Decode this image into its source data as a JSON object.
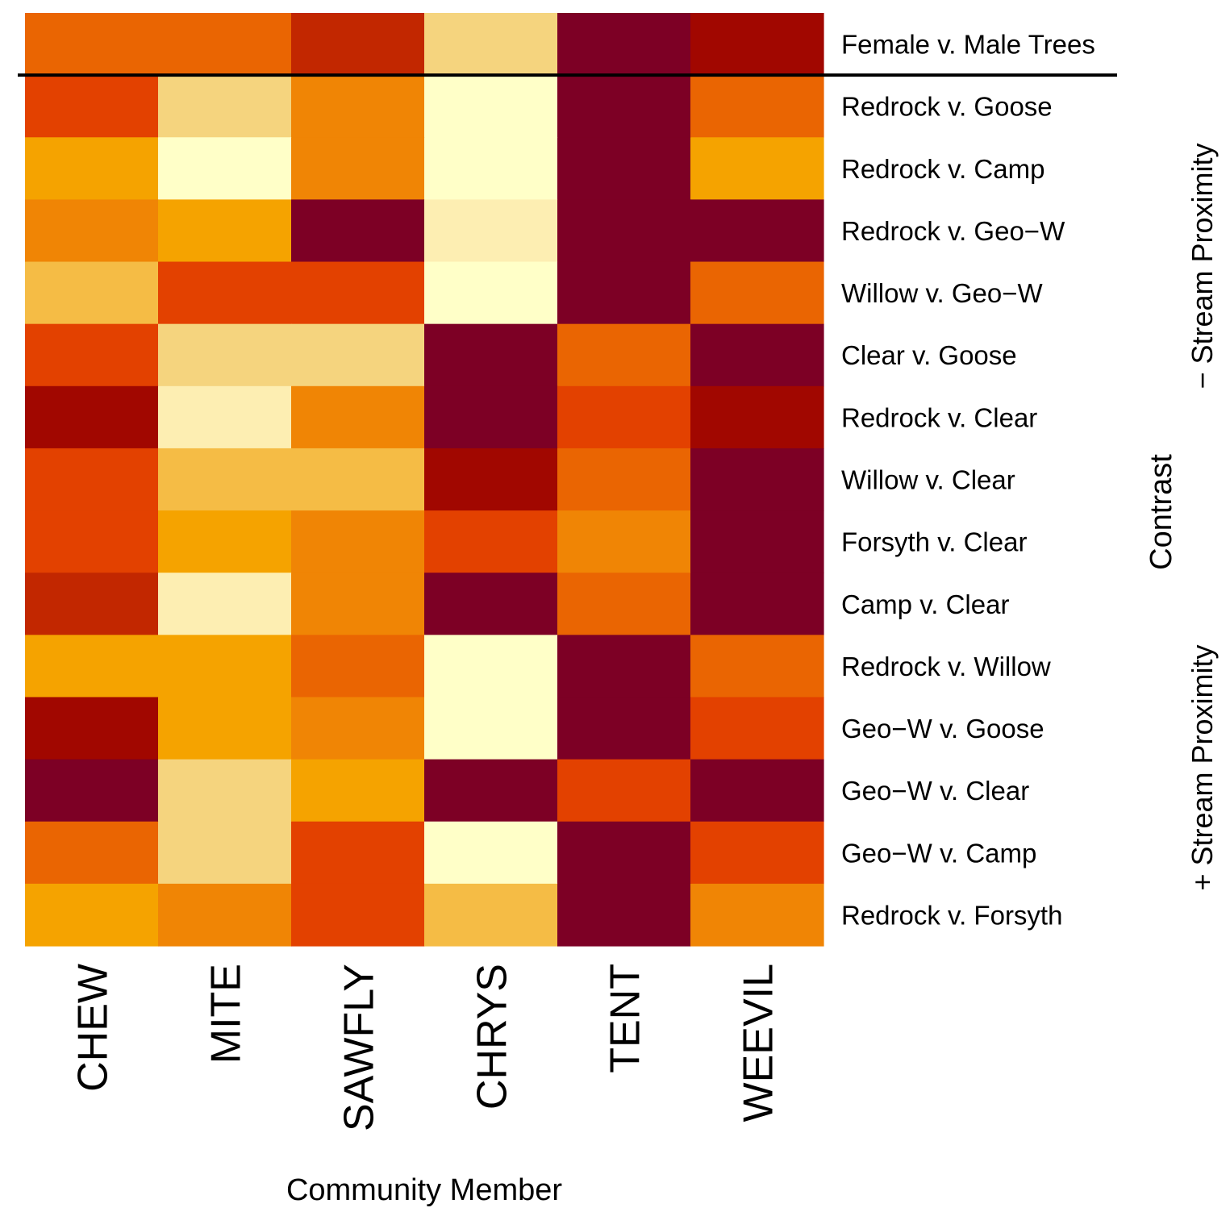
{
  "chart_data": {
    "type": "heatmap",
    "title": "",
    "xlabel": "Community Member",
    "ylabel": "Contrast",
    "group_labels": {
      "upper": "− Stream Proximity",
      "lower": "+ Stream Proximity"
    },
    "columns": [
      "CHEW",
      "MITE",
      "SAWFLY",
      "CHRYS",
      "TENT",
      "WEEVIL"
    ],
    "rows": [
      "Female v. Male Trees",
      "Redrock v. Goose",
      "Redrock v. Camp",
      "Redrock v. Geo−W",
      "Willow v. Geo−W",
      "Clear v. Goose",
      "Redrock v. Clear",
      "Willow v. Clear",
      "Forsyth v. Clear",
      "Camp v. Clear",
      "Redrock v. Willow",
      "Geo−W v. Goose",
      "Geo−W v. Clear",
      "Geo−W v. Camp",
      "Redrock v. Forsyth"
    ],
    "separator_after_row": 0,
    "scale_note": "ordinal color level 0 (lightest, pale yellow) to 10 (darkest, maroon)",
    "values": [
      [
        6,
        6,
        8,
        2,
        10,
        9
      ],
      [
        7,
        2,
        5,
        0,
        10,
        6
      ],
      [
        4,
        0,
        5,
        0,
        10,
        4
      ],
      [
        5,
        4,
        10,
        1,
        10,
        10
      ],
      [
        3,
        7,
        7,
        0,
        10,
        6
      ],
      [
        7,
        2,
        2,
        10,
        6,
        10
      ],
      [
        9,
        1,
        5,
        10,
        7,
        9
      ],
      [
        7,
        3,
        3,
        9,
        6,
        10
      ],
      [
        7,
        4,
        5,
        7,
        5,
        10
      ],
      [
        8,
        1,
        5,
        10,
        6,
        10
      ],
      [
        4,
        4,
        6,
        0,
        10,
        6
      ],
      [
        9,
        4,
        5,
        0,
        10,
        7
      ],
      [
        10,
        2,
        4,
        10,
        7,
        10
      ],
      [
        6,
        2,
        7,
        0,
        10,
        7
      ],
      [
        4,
        5,
        7,
        3,
        10,
        5
      ]
    ],
    "palette": [
      "#ffffc8",
      "#fdeeb2",
      "#f5d47e",
      "#f5bc45",
      "#f5a300",
      "#f08505",
      "#ea6502",
      "#e34100",
      "#c22700",
      "#a10700",
      "#7d0025"
    ]
  }
}
